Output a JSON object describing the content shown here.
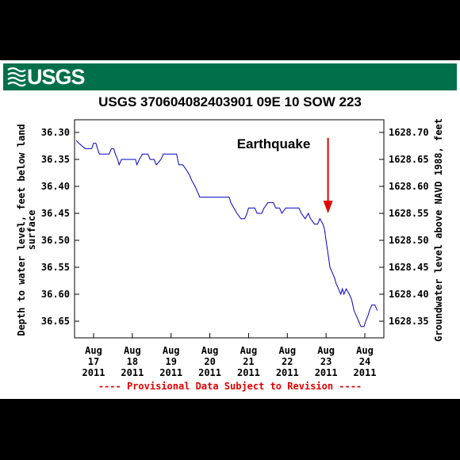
{
  "header": {
    "logo_text": "USGS",
    "title": "USGS 370604082403901 09E 10 SOW 223"
  },
  "chart_data": {
    "type": "line",
    "ylabel_left": "Depth to water level, feet below land surface",
    "ylabel_left_lines": [
      "Depth to water level, feet below land",
      "surface"
    ],
    "ylabel_right": "Groundwater level above NAVD 1988, feet",
    "y_left_range": [
      36.3,
      36.67
    ],
    "y_left_inverted": true,
    "y_left_ticks": [
      "36.30",
      "36.35",
      "36.40",
      "36.45",
      "36.50",
      "36.55",
      "36.60",
      "36.65"
    ],
    "y_right_ticks": [
      "1628.70",
      "1628.65",
      "1628.60",
      "1628.55",
      "1628.50",
      "1628.45",
      "1628.40",
      "1628.35"
    ],
    "x_range": [
      17.0,
      25.0
    ],
    "x_ticks": [
      {
        "x": 17,
        "month": "Aug",
        "day": "17",
        "year": "2011"
      },
      {
        "x": 18,
        "month": "Aug",
        "day": "18",
        "year": "2011"
      },
      {
        "x": 19,
        "month": "Aug",
        "day": "19",
        "year": "2011"
      },
      {
        "x": 20,
        "month": "Aug",
        "day": "20",
        "year": "2011"
      },
      {
        "x": 21,
        "month": "Aug",
        "day": "21",
        "year": "2011"
      },
      {
        "x": 22,
        "month": "Aug",
        "day": "22",
        "year": "2011"
      },
      {
        "x": 23,
        "month": "Aug",
        "day": "23",
        "year": "2011"
      },
      {
        "x": 24,
        "month": "Aug",
        "day": "24",
        "year": "2011"
      }
    ],
    "series": [
      {
        "color": "#0000cc",
        "points": [
          [
            16.55,
            36.315
          ],
          [
            16.62,
            36.32
          ],
          [
            16.7,
            36.325
          ],
          [
            16.78,
            36.33
          ],
          [
            16.95,
            36.33
          ],
          [
            17.0,
            36.32
          ],
          [
            17.06,
            36.32
          ],
          [
            17.1,
            36.33
          ],
          [
            17.15,
            36.34
          ],
          [
            17.4,
            36.34
          ],
          [
            17.46,
            36.33
          ],
          [
            17.52,
            36.33
          ],
          [
            17.56,
            36.34
          ],
          [
            17.62,
            36.35
          ],
          [
            17.66,
            36.36
          ],
          [
            17.72,
            36.35
          ],
          [
            17.88,
            36.35
          ],
          [
            18.0,
            36.35
          ],
          [
            18.08,
            36.35
          ],
          [
            18.12,
            36.36
          ],
          [
            18.18,
            36.35
          ],
          [
            18.26,
            36.34
          ],
          [
            18.4,
            36.34
          ],
          [
            18.46,
            36.35
          ],
          [
            18.56,
            36.35
          ],
          [
            18.62,
            36.36
          ],
          [
            18.74,
            36.35
          ],
          [
            18.8,
            36.34
          ],
          [
            19.0,
            36.34
          ],
          [
            19.14,
            36.34
          ],
          [
            19.2,
            36.36
          ],
          [
            19.3,
            36.36
          ],
          [
            19.4,
            36.37
          ],
          [
            19.48,
            36.38
          ],
          [
            19.54,
            36.39
          ],
          [
            19.62,
            36.4
          ],
          [
            19.68,
            36.41
          ],
          [
            19.74,
            36.42
          ],
          [
            20.0,
            36.42
          ],
          [
            20.5,
            36.42
          ],
          [
            20.54,
            36.43
          ],
          [
            20.62,
            36.44
          ],
          [
            20.7,
            36.45
          ],
          [
            20.8,
            36.46
          ],
          [
            20.9,
            36.46
          ],
          [
            20.96,
            36.45
          ],
          [
            21.0,
            36.44
          ],
          [
            21.16,
            36.44
          ],
          [
            21.22,
            36.45
          ],
          [
            21.34,
            36.45
          ],
          [
            21.4,
            36.44
          ],
          [
            21.5,
            36.43
          ],
          [
            21.64,
            36.43
          ],
          [
            21.7,
            36.44
          ],
          [
            21.8,
            36.44
          ],
          [
            21.86,
            36.45
          ],
          [
            21.96,
            36.44
          ],
          [
            22.0,
            36.44
          ],
          [
            22.3,
            36.44
          ],
          [
            22.36,
            36.45
          ],
          [
            22.46,
            36.46
          ],
          [
            22.54,
            36.45
          ],
          [
            22.6,
            36.46
          ],
          [
            22.7,
            36.47
          ],
          [
            22.78,
            36.47
          ],
          [
            22.84,
            36.46
          ],
          [
            22.92,
            36.47
          ],
          [
            22.96,
            36.48
          ],
          [
            23.0,
            36.5
          ],
          [
            23.06,
            36.53
          ],
          [
            23.1,
            36.55
          ],
          [
            23.16,
            36.56
          ],
          [
            23.22,
            36.57
          ],
          [
            23.26,
            36.58
          ],
          [
            23.32,
            36.59
          ],
          [
            23.38,
            36.6
          ],
          [
            23.42,
            36.59
          ],
          [
            23.46,
            36.6
          ],
          [
            23.52,
            36.59
          ],
          [
            23.6,
            36.6
          ],
          [
            23.66,
            36.61
          ],
          [
            23.72,
            36.63
          ],
          [
            23.78,
            36.64
          ],
          [
            23.84,
            36.65
          ],
          [
            23.9,
            36.66
          ],
          [
            23.98,
            36.66
          ],
          [
            24.02,
            36.65
          ],
          [
            24.08,
            36.64
          ],
          [
            24.12,
            36.63
          ],
          [
            24.18,
            36.62
          ],
          [
            24.26,
            36.62
          ],
          [
            24.32,
            36.63
          ]
        ]
      }
    ],
    "annotation": {
      "text": "Earthquake",
      "arrow_x": 23.05,
      "arrow_y_top": 36.31,
      "arrow_y_bottom": 36.45,
      "color": "#e00000"
    },
    "footnote": "---- Provisional Data Subject to Revision ----"
  }
}
